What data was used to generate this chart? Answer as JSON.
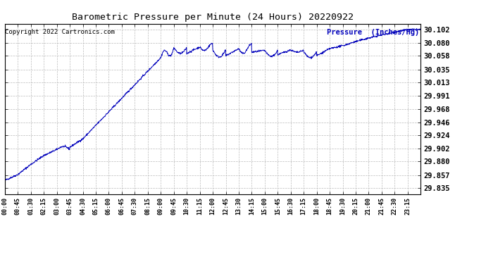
{
  "title": "Barometric Pressure per Minute (24 Hours) 20220922",
  "copyright_text": "Copyright 2022 Cartronics.com",
  "legend_label": "Pressure  (Inches/Hg)",
  "line_color": "#0000bb",
  "background_color": "#ffffff",
  "grid_color": "#bbbbbb",
  "title_color": "#000000",
  "copyright_color": "#000000",
  "legend_color": "#0000bb",
  "yticks": [
    29.835,
    29.857,
    29.88,
    29.902,
    29.924,
    29.946,
    29.968,
    29.991,
    30.013,
    30.035,
    30.058,
    30.08,
    30.102
  ],
  "xtick_labels": [
    "00:00",
    "00:45",
    "01:30",
    "02:15",
    "03:00",
    "03:45",
    "04:30",
    "05:15",
    "06:00",
    "06:45",
    "07:30",
    "08:15",
    "09:00",
    "09:45",
    "10:30",
    "11:15",
    "12:00",
    "12:45",
    "13:30",
    "14:15",
    "15:00",
    "15:45",
    "16:30",
    "17:15",
    "18:00",
    "18:45",
    "19:30",
    "20:15",
    "21:00",
    "21:45",
    "22:30",
    "23:15"
  ],
  "ylim": [
    29.825,
    30.112
  ],
  "xlim_min": 0,
  "xlim_max": 1439
}
